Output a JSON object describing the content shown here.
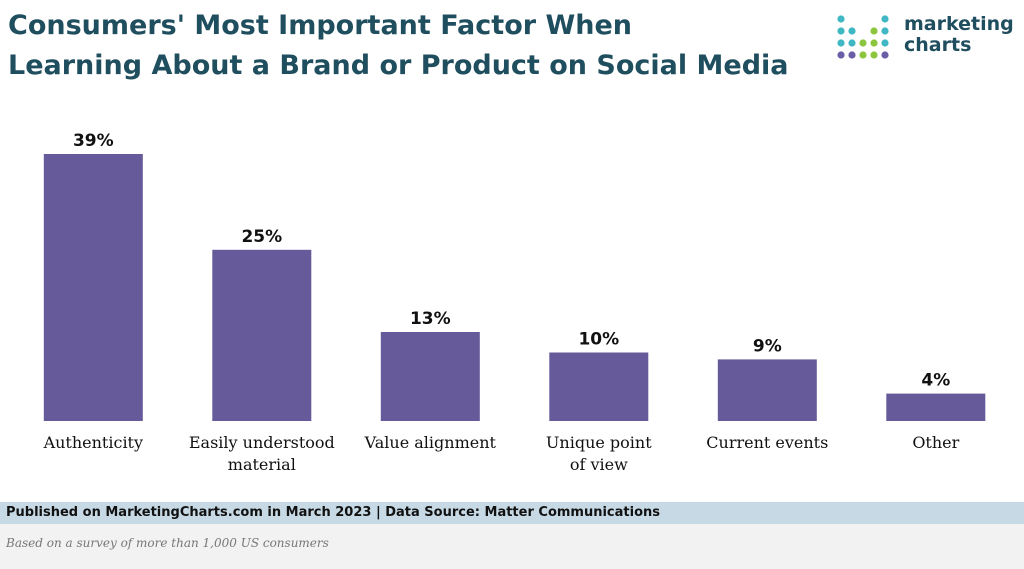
{
  "header": {
    "title_line1": "Consumers' Most Important Factor When",
    "title_line2": "Learning About a Brand or Product on Social Media"
  },
  "logo": {
    "name": "marketing-charts-logo",
    "line1": "marketing",
    "line2": "charts",
    "dot_colors": [
      "#3fb8c4",
      "#8cc63f",
      "#6a5fa6"
    ]
  },
  "chart_data": {
    "type": "bar",
    "categories": [
      [
        "Authenticity"
      ],
      [
        "Easily understood",
        "material"
      ],
      [
        "Value alignment"
      ],
      [
        "Unique point",
        "of view"
      ],
      [
        "Current events"
      ],
      [
        "Other"
      ]
    ],
    "values": [
      39,
      25,
      13,
      10,
      9,
      4
    ],
    "value_labels": [
      "39%",
      "25%",
      "13%",
      "10%",
      "9%",
      "4%"
    ],
    "ylim": [
      0,
      40
    ],
    "grid": false,
    "legend": "none",
    "bar_color": "#665a9a"
  },
  "footer": {
    "published": "Published on MarketingCharts.com in March 2023 | Data Source: Matter Communications",
    "note": "Based on a survey of more than 1,000 US consumers"
  }
}
